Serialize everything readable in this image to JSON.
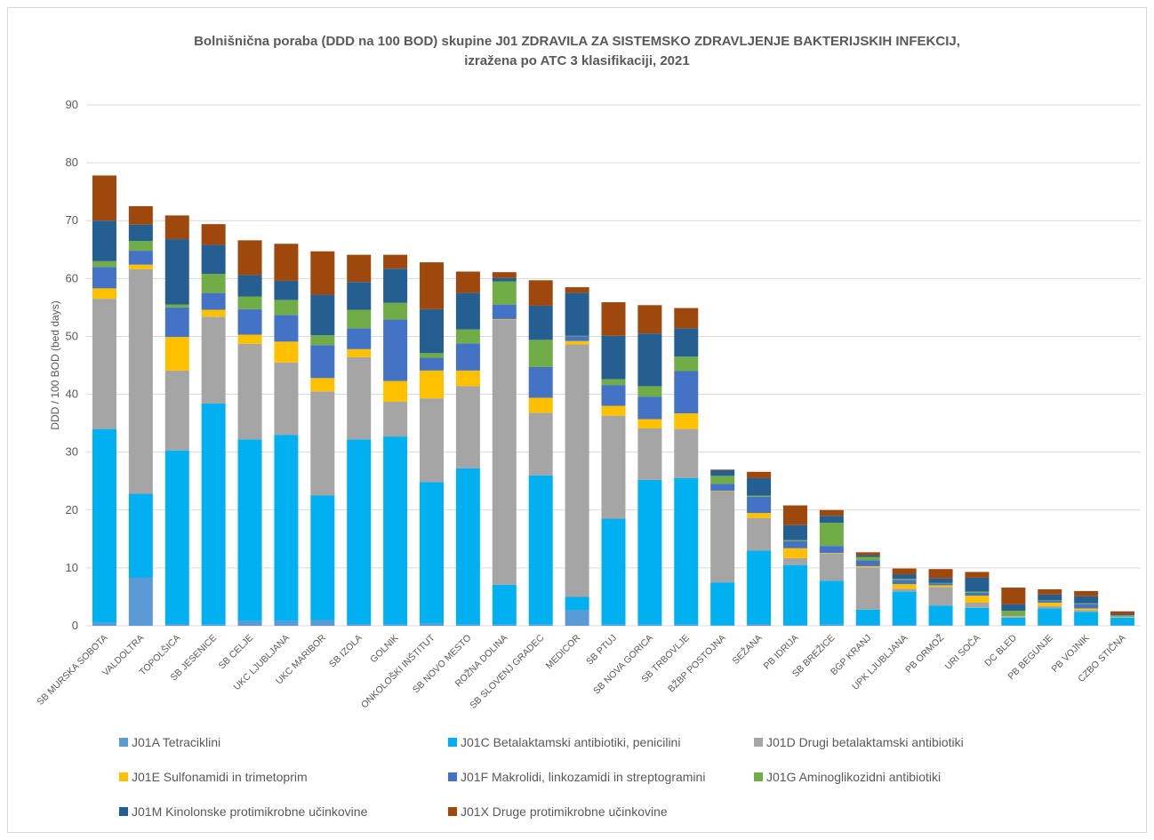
{
  "chart_data": {
    "type": "bar",
    "stacked": true,
    "title": [
      "Bolnišnična poraba (DDD na 100 BOD) skupine J01 ZDRAVILA ZA SISTEMSKO ZDRAVLJENJE BAKTERIJSKIH INFEKCIJ,",
      "izražena po ATC 3 klasifikaciji, 2021"
    ],
    "ylabel": "DDD / 100 BOD (bed days)",
    "ylim": [
      0,
      90
    ],
    "yticks": [
      0,
      10,
      20,
      30,
      40,
      50,
      60,
      70,
      80,
      90
    ],
    "grid": true,
    "legend_position": "bottom",
    "categories": [
      "SB MURSKA SOBOTA",
      "VALDOLTRA",
      "TOPOLŠICA",
      "SB JESENICE",
      "SB CELJE",
      "UKC LJUBLJANA",
      "UKC MARIBOR",
      "SB IZOLA",
      "GOLNIK",
      "ONKOLOŠKI INŠTITUT",
      "SB NOVO MESTO",
      "ROŽNA DOLINA",
      "SB SLOVENJ GRADEC",
      "MEDICOR",
      "SB PTUJ",
      "SB NOVA GORICA",
      "SB TRBOVLJE",
      "BŽBP POSTOJNA",
      "SEŽANA",
      "PB IDRIJA",
      "SB BREŽICE",
      "BGP KRANJ",
      "UPK LJUBLJANA",
      "PB ORMOŽ",
      "URI SOČA",
      "DC BLED",
      "PB BEGUNJE",
      "PB VOJNIK",
      "CZBO STIČNA"
    ],
    "series": [
      {
        "name": "J01A Tetraciklini",
        "color": "#5b9bd5",
        "values": [
          0.5,
          8.3,
          0.3,
          0.2,
          0.8,
          0.8,
          1.0,
          0.3,
          0.2,
          0.4,
          0.2,
          0.2,
          0.2,
          2.7,
          0.2,
          0.2,
          0.2,
          0.1,
          0.3,
          0.1,
          0.2,
          0.1,
          0.1,
          0.1,
          0.1,
          0.1,
          0.1,
          0.1,
          0.1
        ]
      },
      {
        "name": "J01C Betalaktamski antibiotiki, penicilini",
        "color": "#00b0f0",
        "values": [
          33.5,
          14.5,
          30.0,
          38.2,
          31.4,
          32.2,
          21.5,
          31.9,
          32.5,
          24.4,
          27.0,
          6.9,
          25.8,
          2.3,
          18.3,
          25.0,
          25.3,
          7.4,
          12.7,
          10.4,
          7.6,
          2.7,
          5.8,
          3.4,
          3.0,
          1.3,
          2.9,
          2.3,
          1.3
        ]
      },
      {
        "name": "J01D Drugi betalaktamski antibiotiki",
        "color": "#a5a5a5",
        "values": [
          22.5,
          38.8,
          13.8,
          15.0,
          16.5,
          12.5,
          18.0,
          14.2,
          6.0,
          14.5,
          14.2,
          45.8,
          10.8,
          43.6,
          17.8,
          8.9,
          8.5,
          15.7,
          5.6,
          1.2,
          4.7,
          7.3,
          0.5,
          3.2,
          0.9,
          0.2,
          0.4,
          0.3,
          0.1
        ]
      },
      {
        "name": "J01E Sulfonamidi in trimetoprim",
        "color": "#ffc000",
        "values": [
          1.8,
          0.8,
          5.8,
          1.2,
          1.6,
          3.6,
          2.3,
          1.4,
          3.6,
          4.8,
          2.7,
          0.1,
          2.6,
          0.6,
          1.7,
          1.6,
          2.7,
          0.1,
          0.9,
          1.7,
          0.1,
          0.2,
          0.8,
          0.3,
          1.2,
          0.1,
          0.6,
          0.3,
          0.1
        ]
      },
      {
        "name": "J01F Makrolidi, linkozamidi in streptogramini",
        "color": "#4472c4",
        "values": [
          3.7,
          2.4,
          5.1,
          2.9,
          4.4,
          4.6,
          5.7,
          3.6,
          10.6,
          2.2,
          4.7,
          2.5,
          5.3,
          0.8,
          3.6,
          3.9,
          7.3,
          1.2,
          2.8,
          1.2,
          1.2,
          1.0,
          0.7,
          0.3,
          0.5,
          0.1,
          0.3,
          0.8,
          0.1
        ]
      },
      {
        "name": "J01G Aminoglikozidni antibiotiki",
        "color": "#70ad47",
        "values": [
          1.0,
          1.7,
          0.5,
          3.3,
          2.2,
          2.6,
          1.7,
          3.2,
          2.9,
          0.8,
          2.4,
          4.0,
          4.7,
          0.1,
          1.0,
          1.8,
          2.5,
          1.4,
          0.2,
          0.2,
          4.0,
          0.6,
          0.2,
          0.1,
          0.2,
          0.8,
          0.1,
          0.1,
          0.1
        ]
      },
      {
        "name": "J01M Kinolonske protimikrobne učinkovine",
        "color": "#255e91",
        "values": [
          7.0,
          2.8,
          11.3,
          5.0,
          3.7,
          3.3,
          7.0,
          4.8,
          5.9,
          7.6,
          6.3,
          0.6,
          5.9,
          7.4,
          7.5,
          9.1,
          4.9,
          1.0,
          3.0,
          2.6,
          1.2,
          0.3,
          0.8,
          0.8,
          2.4,
          1.1,
          1.0,
          1.2,
          0.2
        ]
      },
      {
        "name": "J01X Druge protimikrobne učinkovine",
        "color": "#9e480e",
        "values": [
          7.8,
          3.2,
          4.1,
          3.6,
          6.0,
          6.4,
          7.5,
          4.7,
          2.4,
          8.1,
          3.7,
          1.0,
          4.4,
          1.0,
          5.8,
          4.9,
          3.5,
          0.1,
          1.1,
          3.4,
          1.0,
          0.5,
          1.0,
          1.6,
          1.0,
          2.9,
          0.9,
          0.9,
          0.5
        ]
      }
    ]
  }
}
